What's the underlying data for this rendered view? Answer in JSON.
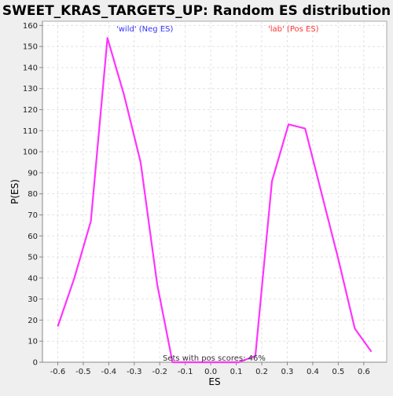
{
  "chart_data": {
    "type": "line",
    "title": "SWEET_KRAS_TARGETS_UP: Random ES distribution",
    "xlabel": "ES",
    "ylabel": "P(ES)",
    "xlim": [
      -0.66,
      0.69
    ],
    "ylim": [
      0,
      162
    ],
    "x_ticks": [
      -0.6,
      -0.5,
      -0.4,
      -0.3,
      -0.2,
      -0.1,
      0.0,
      0.1,
      0.2,
      0.3,
      0.4,
      0.5,
      0.6
    ],
    "x_tick_labels": [
      "-0.6",
      "-0.5",
      "-0.4",
      "-0.3",
      "-0.2",
      "-0.1",
      "0.0",
      "0.1",
      "0.2",
      "0.3",
      "0.4",
      "0.5",
      "0.6"
    ],
    "y_ticks": [
      0,
      10,
      20,
      30,
      40,
      50,
      60,
      70,
      80,
      90,
      100,
      110,
      120,
      130,
      140,
      150,
      160
    ],
    "y_tick_labels": [
      "0",
      "10",
      "20",
      "30",
      "40",
      "50",
      "60",
      "70",
      "80",
      "90",
      "100",
      "110",
      "120",
      "130",
      "140",
      "150",
      "160"
    ],
    "grid": true,
    "series": [
      {
        "color": "#ff33ff",
        "x": [
          -0.6,
          -0.535,
          -0.47,
          -0.405,
          -0.34,
          -0.275,
          -0.21,
          -0.15,
          -0.08,
          -0.01,
          0.05,
          0.11,
          0.175,
          0.24,
          0.305,
          0.37,
          0.435,
          0.5,
          0.565,
          0.63
        ],
        "y": [
          17,
          40,
          67,
          154,
          127,
          95,
          37,
          0,
          0,
          0,
          0,
          0,
          3,
          86,
          113,
          111,
          80,
          49,
          16,
          5
        ]
      }
    ],
    "annotations": [
      {
        "text": "'wild' (Neg ES)",
        "color": "#3333ff"
      },
      {
        "text": "'lab' (Pos ES)",
        "color": "#ff3333"
      },
      {
        "text": "Sets with pos scores: 46%",
        "color": "#333333"
      }
    ]
  }
}
